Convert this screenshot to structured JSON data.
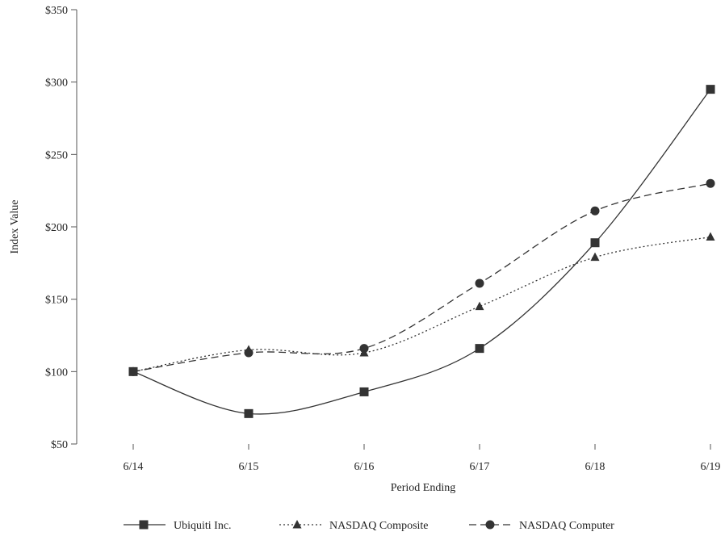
{
  "chart_data": {
    "type": "line",
    "title": "",
    "xlabel": "Period Ending",
    "ylabel": "Index Value",
    "categories": [
      "6/14",
      "6/15",
      "6/16",
      "6/17",
      "6/18",
      "6/19"
    ],
    "ylim": [
      50,
      350
    ],
    "yticks": [
      50,
      100,
      150,
      200,
      250,
      300,
      350
    ],
    "ytick_labels": [
      "$50",
      "$100",
      "$150",
      "$200",
      "$250",
      "$300",
      "$350"
    ],
    "grid": false,
    "legend_position": "bottom",
    "series": [
      {
        "name": "Ubiquiti Inc.",
        "marker": "square",
        "dash": "solid",
        "color": "#333333",
        "values": [
          100,
          71,
          86,
          116,
          189,
          295
        ]
      },
      {
        "name": "NASDAQ Composite",
        "marker": "triangle",
        "dash": "dotted",
        "color": "#333333",
        "values": [
          100,
          115,
          113,
          145,
          179,
          193
        ]
      },
      {
        "name": "NASDAQ Computer",
        "marker": "circle",
        "dash": "dashed",
        "color": "#333333",
        "values": [
          100,
          113,
          116,
          161,
          211,
          230
        ]
      }
    ]
  }
}
